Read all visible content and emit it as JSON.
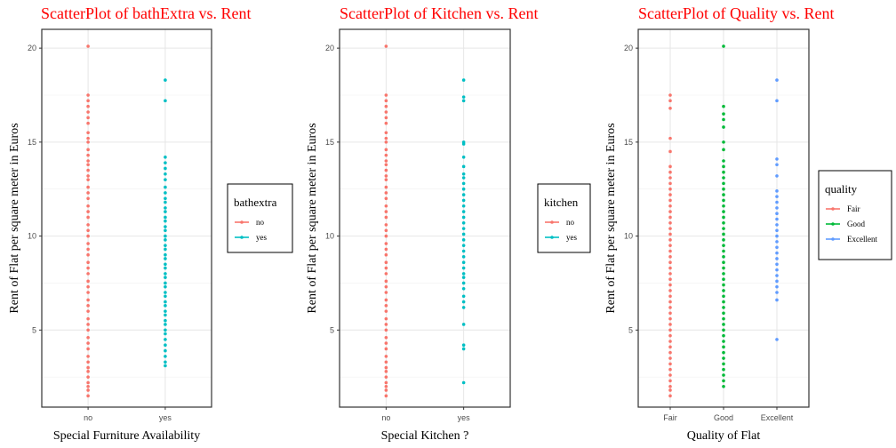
{
  "chart_data": [
    {
      "type": "scatter",
      "title": "ScatterPlot of bathExtra vs. Rent",
      "xlabel": "Special Furniture Availability",
      "ylabel": "Rent of Flat per square meter in Euros",
      "categories": [
        "no",
        "yes"
      ],
      "ylim": [
        0.9,
        21
      ],
      "yticks": [
        5,
        10,
        15,
        20
      ],
      "grid": true,
      "legend": {
        "title": "bathextra",
        "position": "right",
        "entries": [
          "no",
          "yes"
        ]
      },
      "series": [
        {
          "name": "no",
          "color": "#F8766D",
          "values": [
            1.5,
            1.8,
            2.0,
            2.2,
            2.5,
            2.8,
            3.0,
            3.3,
            3.6,
            4.0,
            4.3,
            4.6,
            5.0,
            5.3,
            5.6,
            6.0,
            6.3,
            6.6,
            7.0,
            7.3,
            7.6,
            8.0,
            8.3,
            8.6,
            9.0,
            9.3,
            9.6,
            10.0,
            10.3,
            10.6,
            11.0,
            11.3,
            11.6,
            12.0,
            12.3,
            12.6,
            13.0,
            13.2,
            13.5,
            13.8,
            14.0,
            14.3,
            14.6,
            15.0,
            15.2,
            15.5,
            16.0,
            16.3,
            16.6,
            16.9,
            17.2,
            17.5,
            20.1
          ]
        },
        {
          "name": "yes",
          "color": "#00BFC4",
          "values": [
            3.1,
            3.3,
            3.6,
            3.9,
            4.2,
            4.5,
            4.8,
            5.0,
            5.3,
            5.5,
            5.8,
            6.0,
            6.3,
            6.5,
            6.8,
            7.0,
            7.3,
            7.5,
            7.8,
            8.0,
            8.3,
            8.5,
            8.8,
            9.0,
            9.3,
            9.5,
            9.8,
            10.0,
            10.3,
            10.5,
            10.8,
            11.0,
            11.3,
            11.5,
            11.8,
            12.0,
            12.3,
            12.6,
            13.0,
            13.3,
            13.6,
            13.9,
            14.2,
            17.2,
            18.3
          ]
        }
      ]
    },
    {
      "type": "scatter",
      "title": "ScatterPlot of Kitchen vs. Rent",
      "xlabel": "Special Kitchen ?",
      "ylabel": "Rent of Flat per square meter in Euros",
      "categories": [
        "no",
        "yes"
      ],
      "ylim": [
        0.9,
        21
      ],
      "yticks": [
        5,
        10,
        15,
        20
      ],
      "grid": true,
      "legend": {
        "title": "kitchen",
        "position": "right",
        "entries": [
          "no",
          "yes"
        ]
      },
      "series": [
        {
          "name": "no",
          "color": "#F8766D",
          "values": [
            1.5,
            1.8,
            2.0,
            2.2,
            2.5,
            2.8,
            3.0,
            3.3,
            3.6,
            4.0,
            4.3,
            4.6,
            5.0,
            5.3,
            5.6,
            6.0,
            6.3,
            6.6,
            7.0,
            7.3,
            7.6,
            8.0,
            8.3,
            8.6,
            9.0,
            9.3,
            9.6,
            10.0,
            10.3,
            10.6,
            11.0,
            11.3,
            11.6,
            12.0,
            12.3,
            12.6,
            13.0,
            13.2,
            13.5,
            13.8,
            14.0,
            14.3,
            14.6,
            15.0,
            15.2,
            15.5,
            16.0,
            16.3,
            16.6,
            16.9,
            17.2,
            17.5,
            20.1
          ]
        },
        {
          "name": "yes",
          "color": "#00BFC4",
          "values": [
            2.2,
            4.0,
            4.2,
            5.3,
            6.2,
            6.5,
            6.8,
            7.2,
            7.5,
            7.8,
            8.0,
            8.3,
            8.6,
            8.9,
            9.2,
            9.5,
            9.8,
            10.1,
            10.4,
            10.7,
            11.0,
            11.3,
            11.6,
            11.9,
            12.2,
            12.5,
            12.8,
            13.1,
            13.3,
            13.7,
            14.2,
            14.9,
            15.0,
            17.2,
            17.4,
            18.3
          ]
        }
      ]
    },
    {
      "type": "scatter",
      "title": "ScatterPlot of Quality vs. Rent",
      "xlabel": "Quality of Flat",
      "ylabel": "Rent of Flat per square meter in Euros",
      "categories": [
        "Fair",
        "Good",
        "Excellent"
      ],
      "ylim": [
        0.9,
        21
      ],
      "yticks": [
        5,
        10,
        15,
        20
      ],
      "grid": true,
      "legend": {
        "title": "quality",
        "position": "right",
        "entries": [
          "Fair",
          "Good",
          "Excellent"
        ]
      },
      "series": [
        {
          "name": "Fair",
          "color": "#F8766D",
          "values": [
            1.5,
            1.8,
            2.0,
            2.3,
            2.6,
            2.9,
            3.2,
            3.5,
            3.8,
            4.1,
            4.4,
            4.7,
            5.0,
            5.3,
            5.6,
            5.9,
            6.2,
            6.5,
            6.8,
            7.1,
            7.4,
            7.7,
            8.0,
            8.3,
            8.6,
            8.9,
            9.2,
            9.5,
            9.8,
            10.1,
            10.4,
            10.7,
            11.0,
            11.3,
            11.6,
            11.9,
            12.2,
            12.5,
            12.8,
            13.1,
            13.4,
            13.7,
            14.5,
            15.2,
            16.8,
            17.2,
            17.5
          ]
        },
        {
          "name": "Good",
          "color": "#00BA38",
          "values": [
            2.0,
            2.3,
            2.6,
            2.9,
            3.2,
            3.5,
            3.8,
            4.1,
            4.4,
            4.7,
            5.0,
            5.3,
            5.6,
            5.9,
            6.2,
            6.5,
            6.8,
            7.1,
            7.4,
            7.7,
            8.0,
            8.3,
            8.6,
            8.9,
            9.2,
            9.5,
            9.8,
            10.1,
            10.4,
            10.7,
            11.0,
            11.3,
            11.6,
            11.9,
            12.2,
            12.5,
            12.8,
            13.1,
            13.4,
            13.7,
            14.0,
            14.6,
            15.0,
            15.8,
            16.2,
            16.5,
            16.9,
            20.1
          ]
        },
        {
          "name": "Excellent",
          "color": "#619CFF",
          "values": [
            4.5,
            6.6,
            7.0,
            7.3,
            7.6,
            7.9,
            8.2,
            8.5,
            8.8,
            9.1,
            9.4,
            9.7,
            10.0,
            10.3,
            10.6,
            10.9,
            11.2,
            11.5,
            11.8,
            12.1,
            12.4,
            13.2,
            13.8,
            14.1,
            17.2,
            18.3
          ]
        }
      ]
    }
  ]
}
